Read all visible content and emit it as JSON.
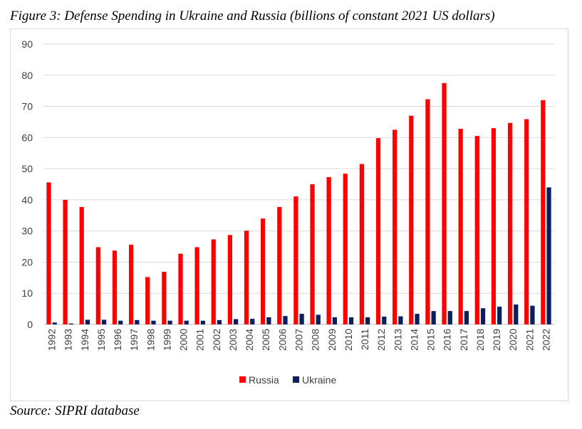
{
  "figure": {
    "title": "Figure 3: Defense Spending in Ukraine and Russia (billions of constant 2021 US dollars)",
    "source": "Source: SIPRI database"
  },
  "chart_data": {
    "type": "bar",
    "title": "",
    "xlabel": "",
    "ylabel": "",
    "ylim": [
      0,
      90
    ],
    "yticks": [
      0,
      10,
      20,
      30,
      40,
      50,
      60,
      70,
      80,
      90
    ],
    "grid": true,
    "legend_position": "bottom",
    "categories": [
      "1992",
      "1993",
      "1994",
      "1995",
      "1996",
      "1997",
      "1998",
      "1999",
      "2000",
      "2001",
      "2002",
      "2003",
      "2004",
      "2005",
      "2006",
      "2007",
      "2008",
      "2009",
      "2010",
      "2011",
      "2012",
      "2013",
      "2014",
      "2015",
      "2016",
      "2017",
      "2018",
      "2019",
      "2020",
      "2021",
      "2022"
    ],
    "series": [
      {
        "name": "Russia",
        "color": "#ff0000",
        "values": [
          45.6,
          40.0,
          37.7,
          24.8,
          23.7,
          25.6,
          15.2,
          16.9,
          22.7,
          24.8,
          27.3,
          28.7,
          30.1,
          34.0,
          37.7,
          41.1,
          45.0,
          47.3,
          48.4,
          51.5,
          59.8,
          62.5,
          67.0,
          72.3,
          77.5,
          62.8,
          60.5,
          63.0,
          64.7,
          65.9,
          72.0
        ]
      },
      {
        "name": "Ukraine",
        "color": "#0a1f5c",
        "values": [
          0.6,
          0.3,
          1.5,
          1.5,
          1.2,
          1.4,
          1.2,
          1.2,
          1.2,
          1.2,
          1.4,
          1.7,
          1.8,
          2.3,
          2.7,
          3.4,
          3.1,
          2.3,
          2.3,
          2.3,
          2.5,
          2.6,
          3.4,
          4.3,
          4.3,
          4.3,
          5.2,
          5.7,
          6.4,
          6.0,
          44.0
        ]
      }
    ]
  }
}
